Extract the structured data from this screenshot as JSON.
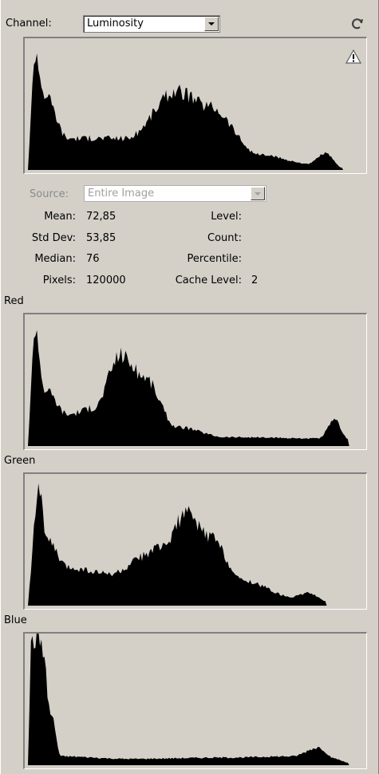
{
  "channel": {
    "label": "Channel:",
    "value": "Luminosity"
  },
  "icons": {
    "refresh": "refresh-icon",
    "warning": "warning-icon"
  },
  "source": {
    "label": "Source:",
    "value": "Entire Image"
  },
  "stats": {
    "mean_label": "Mean:",
    "mean": "72,85",
    "stddev_label": "Std Dev:",
    "stddev": "53,85",
    "median_label": "Median:",
    "median": "76",
    "pixels_label": "Pixels:",
    "pixels": "120000",
    "level_label": "Level:",
    "level": "",
    "count_label": "Count:",
    "count": "",
    "percentile_label": "Percentile:",
    "percentile": "",
    "cache_label": "Cache Level:",
    "cache": "2"
  },
  "channels": {
    "red": "Red",
    "green": "Green",
    "blue": "Blue"
  },
  "histograms": {
    "luminosity": {
      "peaks": [
        [
          0.02,
          0.95
        ],
        [
          0.05,
          0.6
        ],
        [
          0.12,
          0.25
        ],
        [
          0.3,
          0.25
        ],
        [
          0.45,
          0.62
        ],
        [
          0.55,
          0.5
        ],
        [
          0.7,
          0.12
        ],
        [
          0.85,
          0.05
        ],
        [
          0.9,
          0.13
        ],
        [
          0.95,
          0.02
        ]
      ]
    },
    "red": {
      "peaks": [
        [
          0.02,
          0.97
        ],
        [
          0.05,
          0.45
        ],
        [
          0.12,
          0.25
        ],
        [
          0.2,
          0.3
        ],
        [
          0.28,
          0.72
        ],
        [
          0.35,
          0.55
        ],
        [
          0.45,
          0.15
        ],
        [
          0.6,
          0.07
        ],
        [
          0.88,
          0.06
        ],
        [
          0.93,
          0.2
        ],
        [
          0.97,
          0.05
        ]
      ]
    },
    "green": {
      "peaks": [
        [
          0.03,
          0.97
        ],
        [
          0.06,
          0.5
        ],
        [
          0.12,
          0.3
        ],
        [
          0.25,
          0.25
        ],
        [
          0.4,
          0.45
        ],
        [
          0.48,
          0.72
        ],
        [
          0.55,
          0.55
        ],
        [
          0.65,
          0.2
        ],
        [
          0.8,
          0.07
        ],
        [
          0.85,
          0.1
        ],
        [
          0.9,
          0.04
        ]
      ]
    },
    "blue": {
      "peaks": [
        [
          0.01,
          1.0
        ],
        [
          0.04,
          0.98
        ],
        [
          0.07,
          0.4
        ],
        [
          0.1,
          0.07
        ],
        [
          0.3,
          0.05
        ],
        [
          0.6,
          0.06
        ],
        [
          0.8,
          0.07
        ],
        [
          0.88,
          0.14
        ],
        [
          0.93,
          0.05
        ],
        [
          0.97,
          0.02
        ]
      ]
    }
  }
}
